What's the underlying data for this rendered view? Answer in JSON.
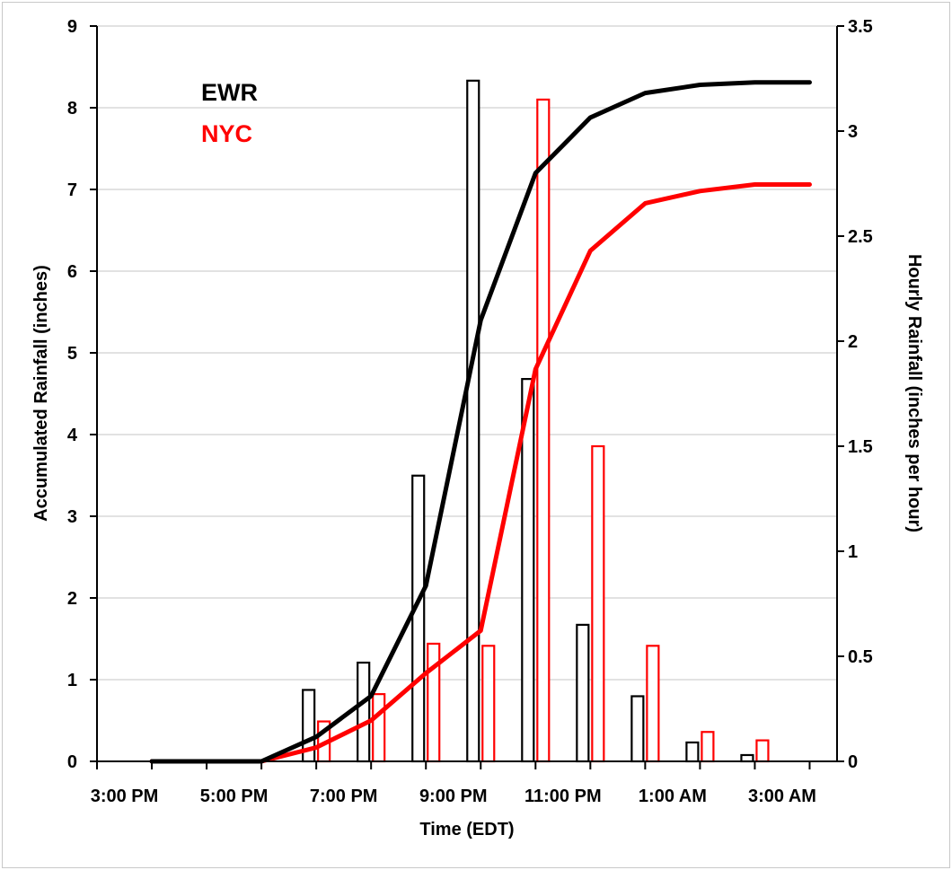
{
  "chart_data": {
    "type": "bar+line",
    "xlabel": "Time (EDT)",
    "ylabel_left": "Accumulated Rainfall (inches)",
    "ylabel_right": "Hourly Rainfall (inches per hour)",
    "ylim_left": [
      0,
      9
    ],
    "ylim_right": [
      0,
      3.5
    ],
    "grid": true,
    "legend_placement": "top-left",
    "x_tick_labels": [
      "3:00 PM",
      "5:00 PM",
      "7:00 PM",
      "9:00 PM",
      "11:00 PM",
      "1:00 AM",
      "3:00 AM"
    ],
    "y_left_ticks": [
      "0",
      "1",
      "2",
      "3",
      "4",
      "5",
      "6",
      "7",
      "8",
      "9"
    ],
    "y_right_ticks": [
      "0",
      "0.5",
      "1",
      "1.5",
      "2",
      "2.5",
      "3",
      "3.5"
    ],
    "hours": [
      "3:00 PM",
      "4:00 PM",
      "5:00 PM",
      "6:00 PM",
      "7:00 PM",
      "8:00 PM",
      "9:00 PM",
      "10:00 PM",
      "11:00 PM",
      "12:00 AM",
      "1:00 AM",
      "2:00 AM",
      "3:00 AM"
    ],
    "series": [
      {
        "name": "EWR",
        "color": "#000000",
        "accumulated": [
          0,
          0,
          0,
          0.3,
          0.8,
          2.15,
          5.4,
          7.2,
          7.88,
          8.18,
          8.28,
          8.31,
          8.31
        ],
        "hourly": [
          0,
          0,
          0,
          0.34,
          0.47,
          1.36,
          3.24,
          1.82,
          0.65,
          0.31,
          0.09,
          0.03,
          0
        ]
      },
      {
        "name": "NYC",
        "color": "#ff0000",
        "accumulated": [
          0,
          0,
          0,
          0.17,
          0.5,
          1.08,
          1.6,
          4.8,
          6.25,
          6.83,
          6.98,
          7.06,
          7.06
        ],
        "hourly": [
          0,
          0,
          0,
          0.19,
          0.32,
          0.56,
          0.55,
          3.15,
          1.5,
          0.55,
          0.14,
          0.1,
          0
        ]
      }
    ]
  }
}
